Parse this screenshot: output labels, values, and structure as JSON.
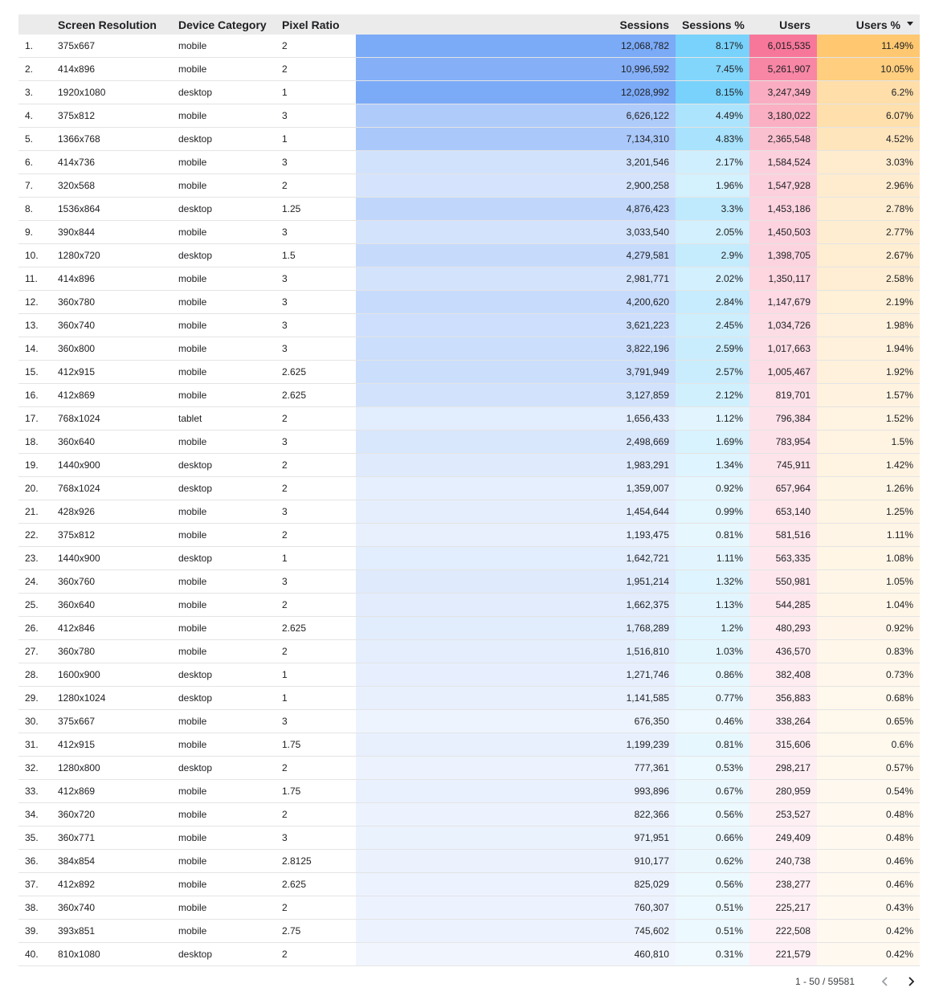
{
  "columns": {
    "index": "",
    "screen_resolution": "Screen Resolution",
    "device_category": "Device Category",
    "pixel_ratio": "Pixel Ratio",
    "sessions": "Sessions",
    "sessions_pct": "Sessions %",
    "users": "Users",
    "users_pct": "Users %"
  },
  "sort": {
    "column": "users_pct",
    "direction": "descending",
    "icon": "sort-desc-icon"
  },
  "heatmap_colors": {
    "sessions": "#7baaf7",
    "sessions_pct": "#78d2fb",
    "users": "#f7779a",
    "users_pct": "#ffc870"
  },
  "rows": [
    {
      "idx": "1.",
      "res": "375x667",
      "cat": "mobile",
      "ratio": "2",
      "sessions": "12,068,782",
      "s_pct": "8.17%",
      "users": "6,015,535",
      "u_pct": "11.49%"
    },
    {
      "idx": "2.",
      "res": "414x896",
      "cat": "mobile",
      "ratio": "2",
      "sessions": "10,996,592",
      "s_pct": "7.45%",
      "users": "5,261,907",
      "u_pct": "10.05%"
    },
    {
      "idx": "3.",
      "res": "1920x1080",
      "cat": "desktop",
      "ratio": "1",
      "sessions": "12,028,992",
      "s_pct": "8.15%",
      "users": "3,247,349",
      "u_pct": "6.2%"
    },
    {
      "idx": "4.",
      "res": "375x812",
      "cat": "mobile",
      "ratio": "3",
      "sessions": "6,626,122",
      "s_pct": "4.49%",
      "users": "3,180,022",
      "u_pct": "6.07%"
    },
    {
      "idx": "5.",
      "res": "1366x768",
      "cat": "desktop",
      "ratio": "1",
      "sessions": "7,134,310",
      "s_pct": "4.83%",
      "users": "2,365,548",
      "u_pct": "4.52%"
    },
    {
      "idx": "6.",
      "res": "414x736",
      "cat": "mobile",
      "ratio": "3",
      "sessions": "3,201,546",
      "s_pct": "2.17%",
      "users": "1,584,524",
      "u_pct": "3.03%"
    },
    {
      "idx": "7.",
      "res": "320x568",
      "cat": "mobile",
      "ratio": "2",
      "sessions": "2,900,258",
      "s_pct": "1.96%",
      "users": "1,547,928",
      "u_pct": "2.96%"
    },
    {
      "idx": "8.",
      "res": "1536x864",
      "cat": "desktop",
      "ratio": "1.25",
      "sessions": "4,876,423",
      "s_pct": "3.3%",
      "users": "1,453,186",
      "u_pct": "2.78%"
    },
    {
      "idx": "9.",
      "res": "390x844",
      "cat": "mobile",
      "ratio": "3",
      "sessions": "3,033,540",
      "s_pct": "2.05%",
      "users": "1,450,503",
      "u_pct": "2.77%"
    },
    {
      "idx": "10.",
      "res": "1280x720",
      "cat": "desktop",
      "ratio": "1.5",
      "sessions": "4,279,581",
      "s_pct": "2.9%",
      "users": "1,398,705",
      "u_pct": "2.67%"
    },
    {
      "idx": "11.",
      "res": "414x896",
      "cat": "mobile",
      "ratio": "3",
      "sessions": "2,981,771",
      "s_pct": "2.02%",
      "users": "1,350,117",
      "u_pct": "2.58%"
    },
    {
      "idx": "12.",
      "res": "360x780",
      "cat": "mobile",
      "ratio": "3",
      "sessions": "4,200,620",
      "s_pct": "2.84%",
      "users": "1,147,679",
      "u_pct": "2.19%"
    },
    {
      "idx": "13.",
      "res": "360x740",
      "cat": "mobile",
      "ratio": "3",
      "sessions": "3,621,223",
      "s_pct": "2.45%",
      "users": "1,034,726",
      "u_pct": "1.98%"
    },
    {
      "idx": "14.",
      "res": "360x800",
      "cat": "mobile",
      "ratio": "3",
      "sessions": "3,822,196",
      "s_pct": "2.59%",
      "users": "1,017,663",
      "u_pct": "1.94%"
    },
    {
      "idx": "15.",
      "res": "412x915",
      "cat": "mobile",
      "ratio": "2.625",
      "sessions": "3,791,949",
      "s_pct": "2.57%",
      "users": "1,005,467",
      "u_pct": "1.92%"
    },
    {
      "idx": "16.",
      "res": "412x869",
      "cat": "mobile",
      "ratio": "2.625",
      "sessions": "3,127,859",
      "s_pct": "2.12%",
      "users": "819,701",
      "u_pct": "1.57%"
    },
    {
      "idx": "17.",
      "res": "768x1024",
      "cat": "tablet",
      "ratio": "2",
      "sessions": "1,656,433",
      "s_pct": "1.12%",
      "users": "796,384",
      "u_pct": "1.52%"
    },
    {
      "idx": "18.",
      "res": "360x640",
      "cat": "mobile",
      "ratio": "3",
      "sessions": "2,498,669",
      "s_pct": "1.69%",
      "users": "783,954",
      "u_pct": "1.5%"
    },
    {
      "idx": "19.",
      "res": "1440x900",
      "cat": "desktop",
      "ratio": "2",
      "sessions": "1,983,291",
      "s_pct": "1.34%",
      "users": "745,911",
      "u_pct": "1.42%"
    },
    {
      "idx": "20.",
      "res": "768x1024",
      "cat": "desktop",
      "ratio": "2",
      "sessions": "1,359,007",
      "s_pct": "0.92%",
      "users": "657,964",
      "u_pct": "1.26%"
    },
    {
      "idx": "21.",
      "res": "428x926",
      "cat": "mobile",
      "ratio": "3",
      "sessions": "1,454,644",
      "s_pct": "0.99%",
      "users": "653,140",
      "u_pct": "1.25%"
    },
    {
      "idx": "22.",
      "res": "375x812",
      "cat": "mobile",
      "ratio": "2",
      "sessions": "1,193,475",
      "s_pct": "0.81%",
      "users": "581,516",
      "u_pct": "1.11%"
    },
    {
      "idx": "23.",
      "res": "1440x900",
      "cat": "desktop",
      "ratio": "1",
      "sessions": "1,642,721",
      "s_pct": "1.11%",
      "users": "563,335",
      "u_pct": "1.08%"
    },
    {
      "idx": "24.",
      "res": "360x760",
      "cat": "mobile",
      "ratio": "3",
      "sessions": "1,951,214",
      "s_pct": "1.32%",
      "users": "550,981",
      "u_pct": "1.05%"
    },
    {
      "idx": "25.",
      "res": "360x640",
      "cat": "mobile",
      "ratio": "2",
      "sessions": "1,662,375",
      "s_pct": "1.13%",
      "users": "544,285",
      "u_pct": "1.04%"
    },
    {
      "idx": "26.",
      "res": "412x846",
      "cat": "mobile",
      "ratio": "2.625",
      "sessions": "1,768,289",
      "s_pct": "1.2%",
      "users": "480,293",
      "u_pct": "0.92%"
    },
    {
      "idx": "27.",
      "res": "360x780",
      "cat": "mobile",
      "ratio": "2",
      "sessions": "1,516,810",
      "s_pct": "1.03%",
      "users": "436,570",
      "u_pct": "0.83%"
    },
    {
      "idx": "28.",
      "res": "1600x900",
      "cat": "desktop",
      "ratio": "1",
      "sessions": "1,271,746",
      "s_pct": "0.86%",
      "users": "382,408",
      "u_pct": "0.73%"
    },
    {
      "idx": "29.",
      "res": "1280x1024",
      "cat": "desktop",
      "ratio": "1",
      "sessions": "1,141,585",
      "s_pct": "0.77%",
      "users": "356,883",
      "u_pct": "0.68%"
    },
    {
      "idx": "30.",
      "res": "375x667",
      "cat": "mobile",
      "ratio": "3",
      "sessions": "676,350",
      "s_pct": "0.46%",
      "users": "338,264",
      "u_pct": "0.65%"
    },
    {
      "idx": "31.",
      "res": "412x915",
      "cat": "mobile",
      "ratio": "1.75",
      "sessions": "1,199,239",
      "s_pct": "0.81%",
      "users": "315,606",
      "u_pct": "0.6%"
    },
    {
      "idx": "32.",
      "res": "1280x800",
      "cat": "desktop",
      "ratio": "2",
      "sessions": "777,361",
      "s_pct": "0.53%",
      "users": "298,217",
      "u_pct": "0.57%"
    },
    {
      "idx": "33.",
      "res": "412x869",
      "cat": "mobile",
      "ratio": "1.75",
      "sessions": "993,896",
      "s_pct": "0.67%",
      "users": "280,959",
      "u_pct": "0.54%"
    },
    {
      "idx": "34.",
      "res": "360x720",
      "cat": "mobile",
      "ratio": "2",
      "sessions": "822,366",
      "s_pct": "0.56%",
      "users": "253,527",
      "u_pct": "0.48%"
    },
    {
      "idx": "35.",
      "res": "360x771",
      "cat": "mobile",
      "ratio": "3",
      "sessions": "971,951",
      "s_pct": "0.66%",
      "users": "249,409",
      "u_pct": "0.48%"
    },
    {
      "idx": "36.",
      "res": "384x854",
      "cat": "mobile",
      "ratio": "2.8125",
      "sessions": "910,177",
      "s_pct": "0.62%",
      "users": "240,738",
      "u_pct": "0.46%"
    },
    {
      "idx": "37.",
      "res": "412x892",
      "cat": "mobile",
      "ratio": "2.625",
      "sessions": "825,029",
      "s_pct": "0.56%",
      "users": "238,277",
      "u_pct": "0.46%"
    },
    {
      "idx": "38.",
      "res": "360x740",
      "cat": "mobile",
      "ratio": "2",
      "sessions": "760,307",
      "s_pct": "0.51%",
      "users": "225,217",
      "u_pct": "0.43%"
    },
    {
      "idx": "39.",
      "res": "393x851",
      "cat": "mobile",
      "ratio": "2.75",
      "sessions": "745,602",
      "s_pct": "0.51%",
      "users": "222,508",
      "u_pct": "0.42%"
    },
    {
      "idx": "40.",
      "res": "810x1080",
      "cat": "desktop",
      "ratio": "2",
      "sessions": "460,810",
      "s_pct": "0.31%",
      "users": "221,579",
      "u_pct": "0.42%"
    }
  ],
  "pagination": {
    "range": "1 - 50 / 59581",
    "prev_icon": "chevron-left-icon",
    "next_icon": "chevron-right-icon"
  }
}
